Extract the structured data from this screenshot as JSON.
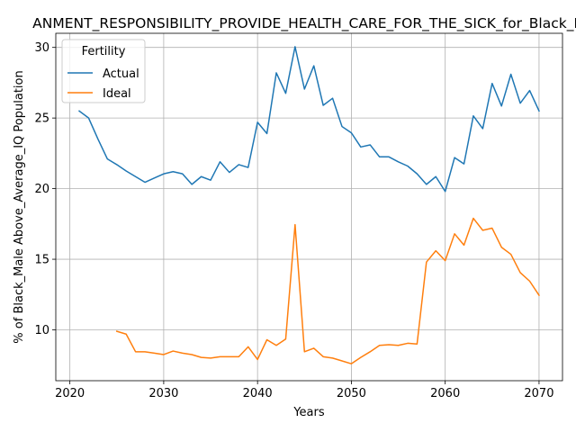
{
  "chart_data": {
    "type": "line",
    "title": "ANMENT_RESPONSIBILITY_PROVIDE_HEALTH_CARE_FOR_THE_SICK_for_Black_M",
    "xlabel": "Years",
    "ylabel": "% of Black_Male Above_Average_IQ Population",
    "xlim": [
      2018.5,
      2072.5
    ],
    "ylim": [
      6.4,
      31.0
    ],
    "xticks": [
      2020,
      2030,
      2040,
      2050,
      2060,
      2070
    ],
    "yticks": [
      10,
      15,
      20,
      25,
      30
    ],
    "grid": true,
    "legend": {
      "title": "Fertility",
      "placement": "top-left"
    },
    "series": [
      {
        "name": "Actual",
        "color": "#1f77b4",
        "x": [
          2021,
          2022,
          2023,
          2024,
          2025,
          2026,
          2027,
          2028,
          2029,
          2030,
          2031,
          2032,
          2033,
          2034,
          2035,
          2036,
          2037,
          2038,
          2039,
          2040,
          2041,
          2042,
          2043,
          2044,
          2045,
          2046,
          2047,
          2048,
          2049,
          2050,
          2051,
          2052,
          2053,
          2054,
          2055,
          2056,
          2057,
          2058,
          2059,
          2060,
          2061,
          2062,
          2063,
          2064,
          2065,
          2066,
          2067,
          2068,
          2069,
          2070
        ],
        "values": [
          25.5,
          25.0,
          23.5,
          22.1,
          21.7,
          21.25,
          20.85,
          20.45,
          20.75,
          21.05,
          21.2,
          21.05,
          20.3,
          20.85,
          20.6,
          21.9,
          21.15,
          21.7,
          21.5,
          24.7,
          23.9,
          28.2,
          26.75,
          30.05,
          27.05,
          28.7,
          25.9,
          26.4,
          24.4,
          23.95,
          22.95,
          23.1,
          22.25,
          22.25,
          21.9,
          21.6,
          21.05,
          20.3,
          20.85,
          19.8,
          22.2,
          21.75,
          25.15,
          24.25,
          27.45,
          25.85,
          28.1,
          26.05,
          26.95,
          25.5
        ]
      },
      {
        "name": "Ideal",
        "color": "#ff7f0e",
        "x": [
          2025,
          2026,
          2027,
          2028,
          2029,
          2030,
          2031,
          2032,
          2033,
          2034,
          2035,
          2036,
          2037,
          2038,
          2039,
          2040,
          2041,
          2042,
          2043,
          2044,
          2045,
          2046,
          2047,
          2048,
          2049,
          2050,
          2051,
          2052,
          2053,
          2054,
          2055,
          2056,
          2057,
          2058,
          2059,
          2060,
          2061,
          2062,
          2063,
          2064,
          2065,
          2066,
          2067,
          2068,
          2069,
          2070
        ],
        "values": [
          9.9,
          9.7,
          8.45,
          8.45,
          8.35,
          8.25,
          8.5,
          8.35,
          8.25,
          8.05,
          8.0,
          8.1,
          8.1,
          8.1,
          8.8,
          7.9,
          9.3,
          8.9,
          9.35,
          17.45,
          8.45,
          8.7,
          8.1,
          8.0,
          7.8,
          7.6,
          8.05,
          8.45,
          8.9,
          8.95,
          8.9,
          9.05,
          9.0,
          14.8,
          15.6,
          14.9,
          16.8,
          16.0,
          17.9,
          17.05,
          17.2,
          15.85,
          15.35,
          14.05,
          13.45,
          12.45
        ]
      }
    ]
  }
}
